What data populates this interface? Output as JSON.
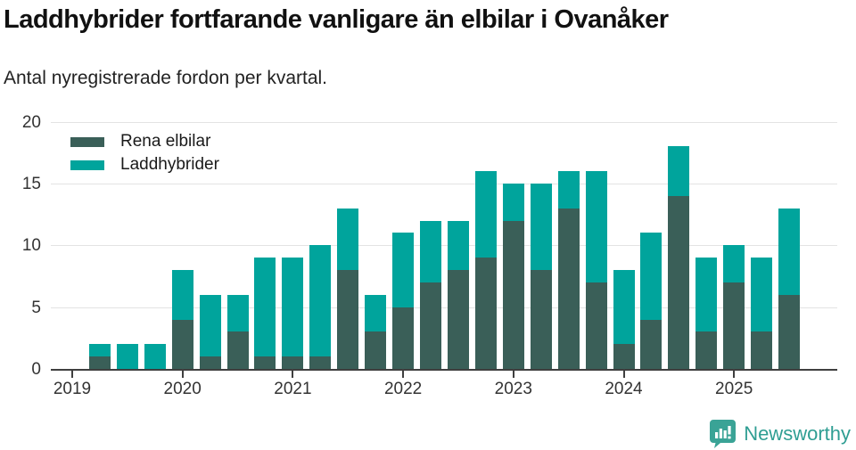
{
  "header": {
    "title": "Laddhybrider fortfarande vanligare än elbilar i Ovanåker",
    "subtitle": "Antal nyregistrerade fordon per kvartal."
  },
  "legend": {
    "items": [
      {
        "label": "Rena elbilar",
        "color": "#3a5f58"
      },
      {
        "label": "Laddhybrider",
        "color": "#00a49c"
      }
    ]
  },
  "footer": {
    "brand": "Newsworthy",
    "brand_color": "#2f9e93",
    "icon_color": "#3aa396",
    "icon": "newsworthy-logo-icon"
  },
  "colors": {
    "background": "#ffffff",
    "axis": "#3f3f3f",
    "gridline": "#e3e3e3",
    "tick_text": "#333333"
  },
  "chart_data": {
    "type": "bar",
    "stacked": true,
    "title": "Laddhybrider fortfarande vanligare än elbilar i Ovanåker",
    "subtitle": "Antal nyregistrerade fordon per kvartal.",
    "xlabel": "",
    "ylabel": "",
    "ylim": [
      0,
      20
    ],
    "yticks": [
      0,
      5,
      10,
      15,
      20
    ],
    "grid": true,
    "legend_position": "top-left",
    "x_year_ticks": [
      "2019",
      "2020",
      "2021",
      "2022",
      "2023",
      "2024",
      "2025"
    ],
    "categories": [
      "2019 Q1",
      "2019 Q2",
      "2019 Q3",
      "2019 Q4",
      "2020 Q1",
      "2020 Q2",
      "2020 Q3",
      "2020 Q4",
      "2021 Q1",
      "2021 Q2",
      "2021 Q3",
      "2021 Q4",
      "2022 Q1",
      "2022 Q2",
      "2022 Q3",
      "2022 Q4",
      "2023 Q1",
      "2023 Q2",
      "2023 Q3",
      "2023 Q4",
      "2024 Q1",
      "2024 Q2",
      "2024 Q3",
      "2024 Q4",
      "2025 Q1",
      "2025 Q2",
      "2025 Q3"
    ],
    "series": [
      {
        "name": "Rena elbilar",
        "color": "#3a5f58",
        "values": [
          0,
          1,
          0,
          0,
          4,
          1,
          3,
          1,
          1,
          1,
          8,
          3,
          5,
          7,
          8,
          9,
          12,
          8,
          13,
          7,
          2,
          4,
          14,
          3,
          7,
          3,
          6
        ]
      },
      {
        "name": "Laddhybrider",
        "color": "#00a49c",
        "values": [
          0,
          1,
          2,
          2,
          4,
          5,
          3,
          8,
          8,
          9,
          5,
          3,
          6,
          5,
          4,
          7,
          3,
          7,
          3,
          9,
          6,
          7,
          4,
          6,
          3,
          6,
          7
        ]
      }
    ],
    "totals": [
      0,
      2,
      2,
      2,
      8,
      6,
      6,
      9,
      9,
      10,
      13,
      6,
      11,
      12,
      12,
      16,
      15,
      15,
      16,
      16,
      8,
      11,
      18,
      9,
      10,
      9,
      13
    ]
  }
}
